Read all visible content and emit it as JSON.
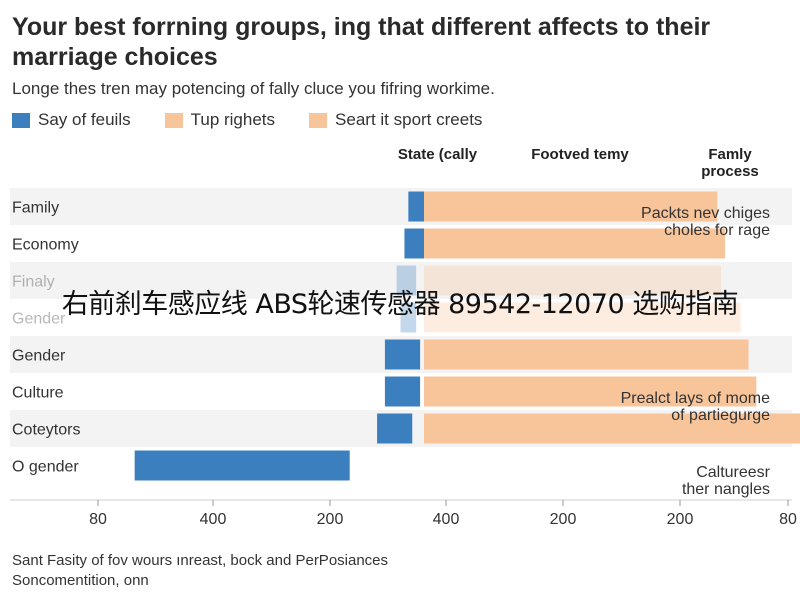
{
  "title": "Your best forrning groups, ing that different affects to their marriage choices",
  "subtitle": "Longe thes tren may potencing of fally cluce you fifring workime.",
  "overlay_text": "右前刹车感应线 ABS轮速传感器 89542-12070 选购指南",
  "footer": [
    "Sant Fasity of fov wours ınreast, bock and PerPosiances",
    "Soncomentition, onn"
  ],
  "legend": [
    {
      "label": "Say of feuils",
      "color": "#3c7fbf"
    },
    {
      "label": "Tup righets",
      "color": "#f8c499"
    },
    {
      "label": "Seart it sport creets",
      "color": "#f8c499"
    }
  ],
  "column_headers": [
    "State (cally",
    "Footved temy",
    "Famly process"
  ],
  "annotations": [
    {
      "row": 0,
      "lines": [
        "Packts nev chiges",
        "choles for rage"
      ]
    },
    {
      "row": 5,
      "lines": [
        "Prealct lays of mome",
        "of partiegurge"
      ]
    },
    {
      "row": 7,
      "lines": [
        "Caltureesr",
        "ther nangles"
      ]
    }
  ],
  "chart_data": {
    "type": "bar",
    "orientation": "horizontal-diverging",
    "title": "Your best forrning groups, ing that different affects to their marriage choices",
    "x_tick_labels": [
      "80",
      "400",
      "200",
      "400",
      "200",
      "200",
      "80"
    ],
    "grid": false,
    "legend_position": "top-left",
    "categories": [
      "Family",
      "Economy",
      "Finaly",
      "Gender",
      "Gender",
      "Culture",
      "Coteytors",
      "O gender"
    ],
    "faded": [
      false,
      false,
      true,
      true,
      false,
      false,
      false,
      false
    ],
    "series": [
      {
        "name": "Say of feuils",
        "color": "#3c7fbf",
        "values": [
          [
            -20,
            0
          ],
          [
            -25,
            0
          ],
          [
            -35,
            -10
          ],
          [
            -30,
            -10
          ],
          [
            -50,
            -5
          ],
          [
            -50,
            -5
          ],
          [
            -60,
            -15
          ],
          [
            -370,
            -95
          ]
        ]
      },
      {
        "name": "Tup righets",
        "color": "#f8c499",
        "values": [
          [
            0,
            375
          ],
          [
            0,
            385
          ],
          [
            0,
            380
          ],
          [
            0,
            405
          ],
          [
            0,
            415
          ],
          [
            0,
            425
          ],
          [
            0,
            505
          ],
          [
            0,
            0
          ]
        ]
      }
    ]
  }
}
